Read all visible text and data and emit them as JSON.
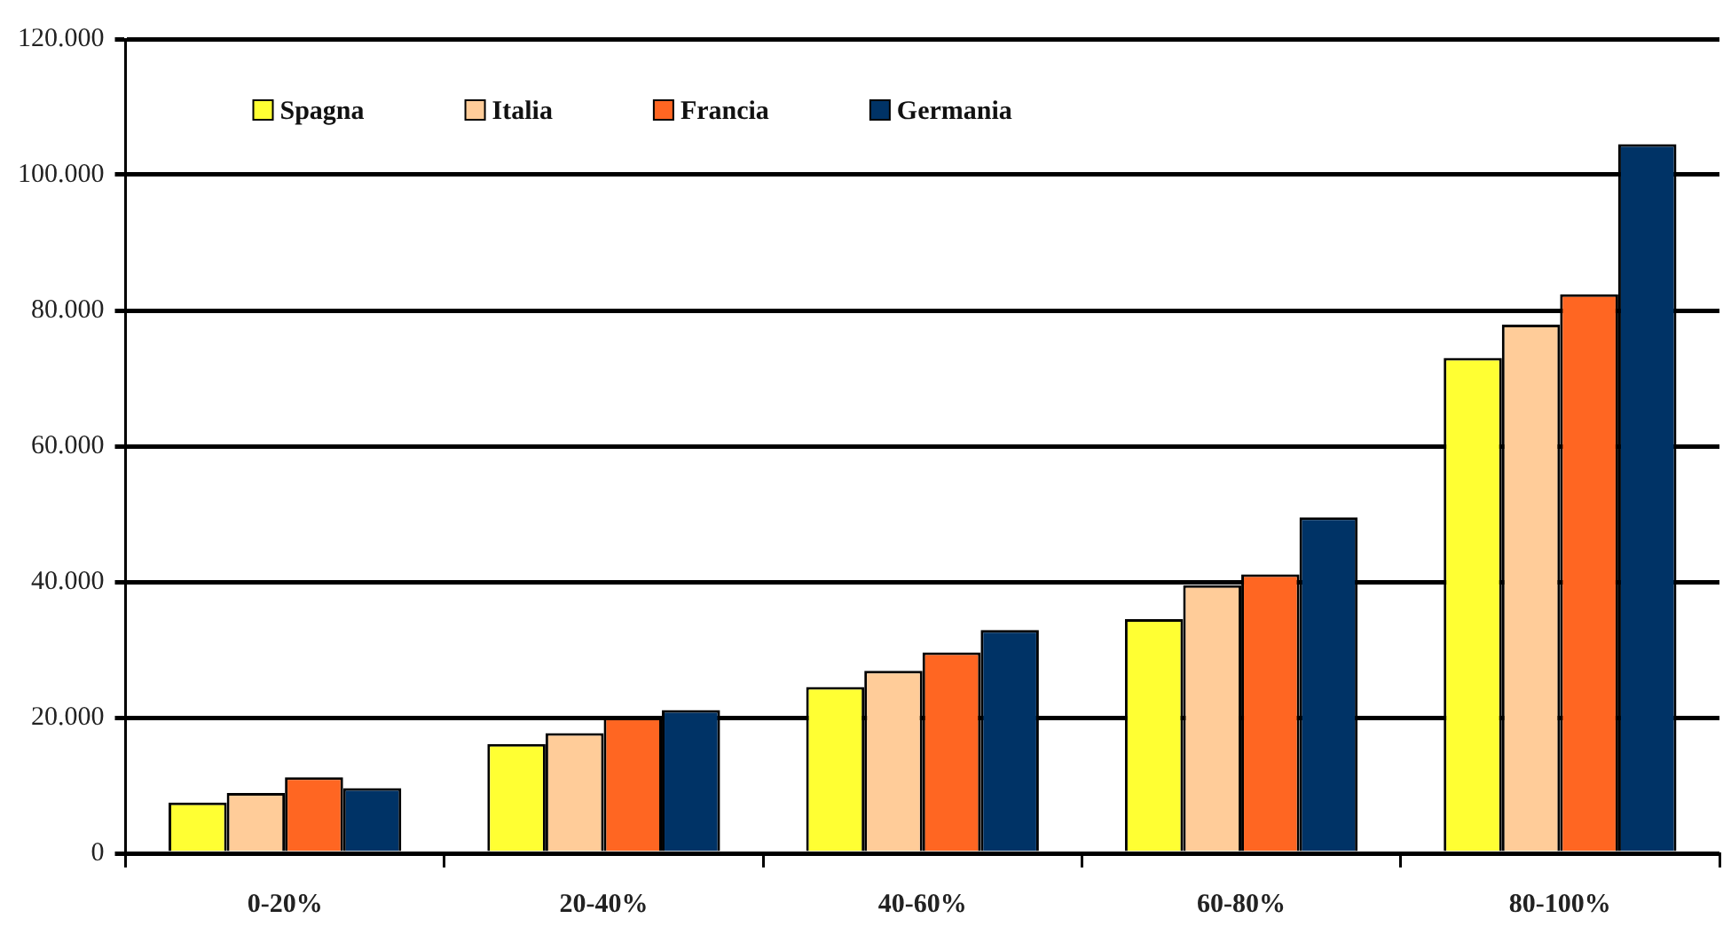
{
  "chart_data": {
    "type": "bar",
    "categories": [
      "0-20%",
      "20-40%",
      "40-60%",
      "60-80%",
      "80-100%"
    ],
    "series": [
      {
        "name": "Spagna",
        "color": "#ffff33",
        "values": [
          7500,
          16100,
          24500,
          34500,
          73000
        ]
      },
      {
        "name": "Italia",
        "color": "#ffcc99",
        "values": [
          8900,
          17700,
          26900,
          39500,
          77900
        ]
      },
      {
        "name": "Francia",
        "color": "#ff6622",
        "values": [
          11200,
          20000,
          29600,
          41100,
          82400
        ]
      },
      {
        "name": "Germania",
        "color": "#003366",
        "values": [
          9600,
          21100,
          32900,
          49500,
          104500
        ]
      }
    ],
    "ylim": [
      0,
      120000
    ],
    "yticks": [
      {
        "value": 0,
        "label": "0"
      },
      {
        "value": 20000,
        "label": "20.000"
      },
      {
        "value": 40000,
        "label": "40.000"
      },
      {
        "value": 60000,
        "label": "60.000"
      },
      {
        "value": 80000,
        "label": "80.000"
      },
      {
        "value": 100000,
        "label": "100.000"
      },
      {
        "value": 120000,
        "label": "120.000"
      }
    ],
    "grid": "y",
    "legend": "top left"
  }
}
